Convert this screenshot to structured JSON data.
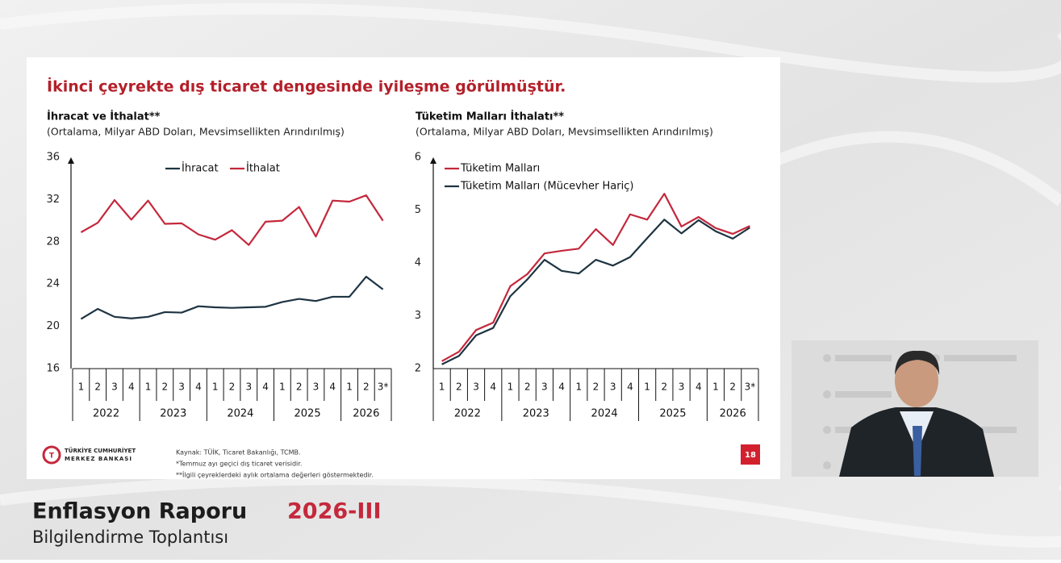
{
  "slide": {
    "title": "İkinci çeyrekte dış ticaret dengesinde iyileşme görülmüştür.",
    "page_number": 18
  },
  "logo": [
    "TÜRKİYE CUMHURİYET",
    "MERKEZ BANKASI"
  ],
  "sources": [
    "Kaynak: TÜİK, Ticaret Bakanlığı, TCMB.",
    "*Temmuz ayı geçici dış ticaret verisidir.",
    "**İlgili çeyreklerdeki aylık ortalama değerleri göstermektedir."
  ],
  "footer": {
    "title": "Enflasyon Raporu",
    "edition": "2026-III",
    "subtitle": "Bilgilendirme Toplantısı"
  },
  "chart_data": [
    {
      "type": "line",
      "title": "İhracat ve İthalat**",
      "subtitle": "(Ortalama, Milyar ABD Doları, Mevsimsellikten Arındırılmış)",
      "categories": [
        "1",
        "2",
        "3",
        "4",
        "1",
        "2",
        "3",
        "4",
        "1",
        "2",
        "3",
        "4",
        "1",
        "2",
        "3",
        "4",
        "1",
        "2",
        "3*"
      ],
      "x_groups": [
        "2022",
        "2023",
        "2024",
        "2025",
        "2026"
      ],
      "series": [
        {
          "name": "İhracat",
          "color": "#1e3442",
          "values": [
            20.7,
            21.65,
            20.9,
            20.75,
            20.9,
            21.35,
            21.3,
            21.9,
            21.8,
            21.75,
            21.8,
            21.85,
            22.3,
            22.6,
            22.4,
            22.8,
            22.8,
            24.7,
            23.5
          ]
        },
        {
          "name": "İthalat",
          "color": "#c4283c",
          "values": [
            28.9,
            29.8,
            31.95,
            30.1,
            31.9,
            29.7,
            29.75,
            28.7,
            28.2,
            29.1,
            27.7,
            29.9,
            30.0,
            31.3,
            28.5,
            31.9,
            31.8,
            32.4,
            30.0
          ]
        }
      ],
      "ylim": [
        16,
        36
      ],
      "yticks": [
        16,
        20,
        24,
        28,
        32,
        36
      ],
      "legend": "top",
      "legend_layout": "row"
    },
    {
      "type": "line",
      "title": "Tüketim Malları İthalatı**",
      "subtitle": "(Ortalama, Milyar ABD Doları, Mevsimsellikten Arındırılmış)",
      "categories": [
        "1",
        "2",
        "3",
        "4",
        "1",
        "2",
        "3",
        "4",
        "1",
        "2",
        "3",
        "4",
        "1",
        "2",
        "3",
        "4",
        "1",
        "2",
        "3*"
      ],
      "x_groups": [
        "2022",
        "2023",
        "2024",
        "2025",
        "2026"
      ],
      "series": [
        {
          "name": "Tüketim Malları",
          "color": "#c4283c",
          "values": [
            2.14,
            2.32,
            2.73,
            2.87,
            3.56,
            3.79,
            4.18,
            4.23,
            4.27,
            4.64,
            4.34,
            4.92,
            4.82,
            5.31,
            4.69,
            4.87,
            4.66,
            4.55,
            4.7
          ]
        },
        {
          "name": "Tüketim Malları (Mücevher Hariç)",
          "color": "#1e3442",
          "values": [
            2.08,
            2.24,
            2.63,
            2.77,
            3.37,
            3.69,
            4.06,
            3.85,
            3.8,
            4.06,
            3.95,
            4.11,
            4.47,
            4.82,
            4.56,
            4.81,
            4.6,
            4.46,
            4.67
          ]
        }
      ],
      "ylim": [
        2,
        6
      ],
      "yticks": [
        2,
        3,
        4,
        5,
        6
      ],
      "legend": "top-left",
      "legend_layout": "column"
    }
  ]
}
